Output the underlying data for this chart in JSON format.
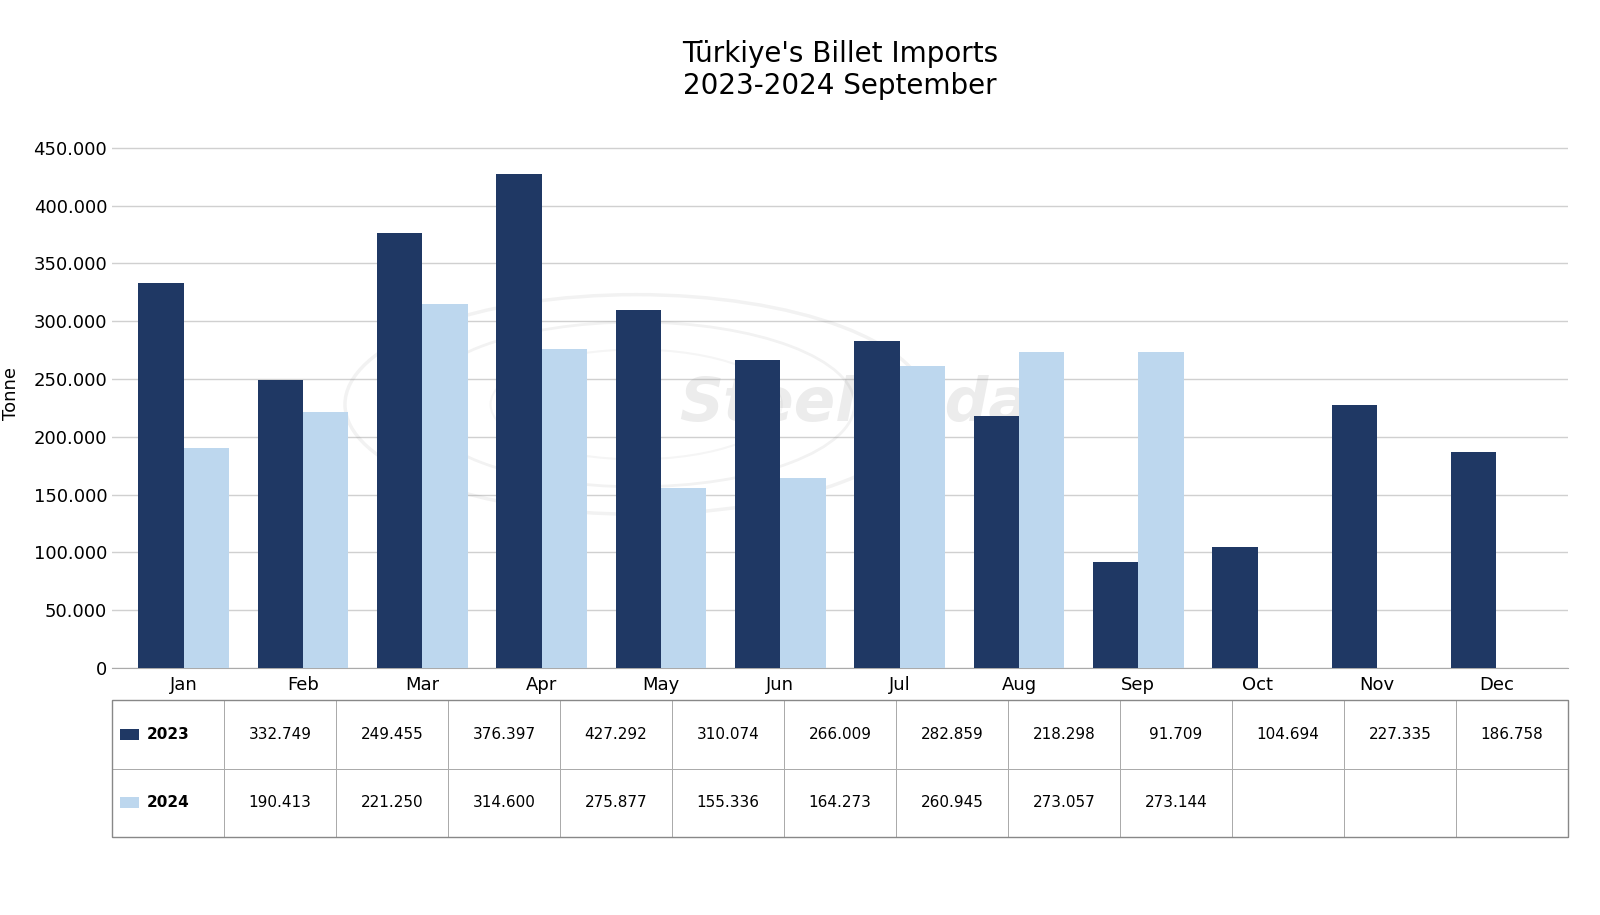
{
  "title_line1": "Türkiye's Billet Imports",
  "title_line2": "2023-2024 September",
  "months": [
    "Jan",
    "Feb",
    "Mar",
    "Apr",
    "May",
    "Jun",
    "Jul",
    "Aug",
    "Sep",
    "Oct",
    "Nov",
    "Dec"
  ],
  "data_2023": [
    332749,
    249455,
    376397,
    427292,
    310074,
    266009,
    282859,
    218298,
    91709,
    104694,
    227335,
    186758
  ],
  "data_2024": [
    190413,
    221250,
    314600,
    275877,
    155336,
    164273,
    260945,
    273057,
    273144,
    null,
    null,
    null
  ],
  "color_2023": "#1f3864",
  "color_2024": "#bdd7ee",
  "ylabel": "Tonne",
  "ylim": [
    0,
    475000
  ],
  "yticks": [
    0,
    50000,
    100000,
    150000,
    200000,
    250000,
    300000,
    350000,
    400000,
    450000
  ],
  "legend_labels": [
    "2023",
    "2024"
  ],
  "table_2023_values": [
    "332.749",
    "249.455",
    "376.397",
    "427.292",
    "310.074",
    "266.009",
    "282.859",
    "218.298",
    "91.709",
    "104.694",
    "227.335",
    "186.758"
  ],
  "table_2024_values": [
    "190.413",
    "221.250",
    "314.600",
    "275.877",
    "155.336",
    "164.273",
    "260.945",
    "273.057",
    "273.144",
    "",
    "",
    ""
  ],
  "background_color": "#ffffff",
  "grid_color": "#d0d0d0",
  "watermark_text": "SteelRadar"
}
